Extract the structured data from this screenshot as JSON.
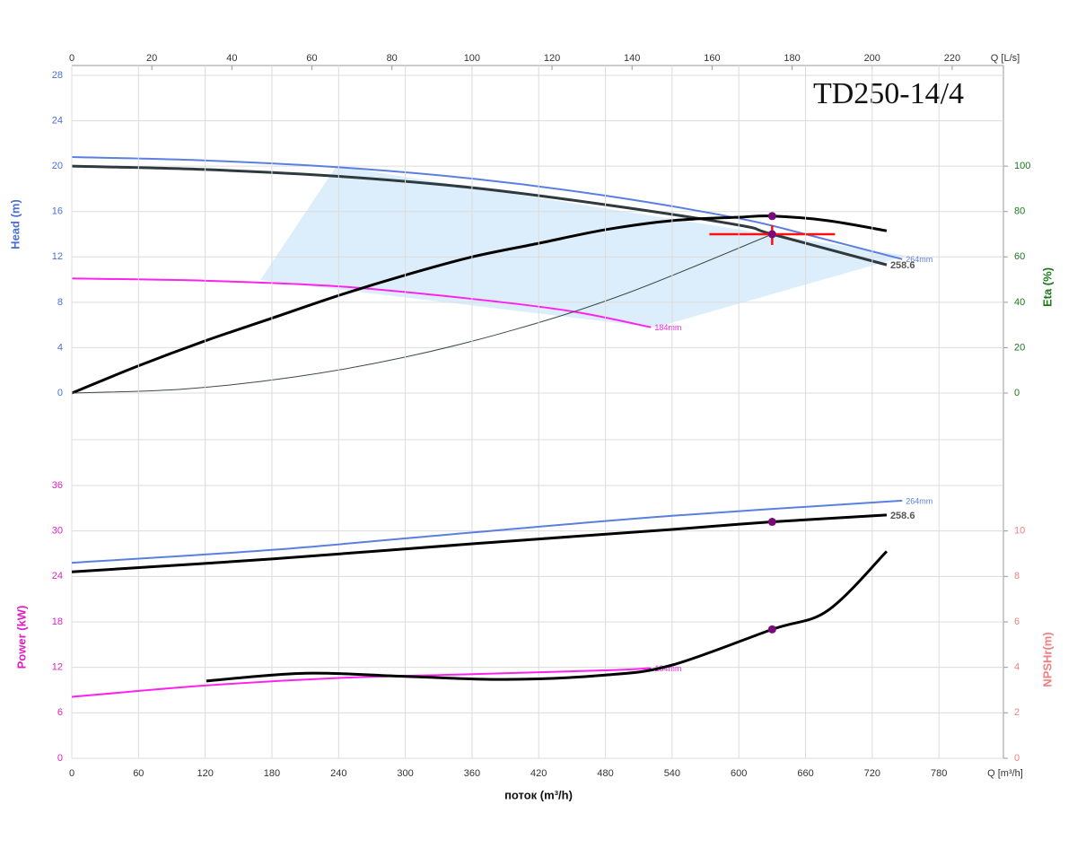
{
  "chart_data": [
    {
      "type": "line",
      "title": "TD250-14/4",
      "y_label": "Head (m)",
      "y2_label": "Eta (%)",
      "x2_label": "Q [L/s]",
      "xlim": [
        0,
        838
      ],
      "x2lim": [
        0,
        232.8
      ],
      "x2ticks": [
        0,
        20,
        40,
        60,
        80,
        100,
        120,
        140,
        160,
        180,
        200,
        220
      ],
      "ylim": [
        0,
        28
      ],
      "yticks": [
        0,
        4,
        8,
        12,
        16,
        20,
        24,
        28
      ],
      "y2lim": [
        0,
        140
      ],
      "y2ticks": [
        0,
        20,
        40,
        60,
        80,
        100
      ],
      "grid": true,
      "series": [
        {
          "name": "264mm",
          "color": "#5b7fe0",
          "x": [
            0,
            120,
            240,
            360,
            480,
            600,
            660,
            747
          ],
          "values": [
            20.8,
            20.5,
            19.9,
            18.9,
            17.4,
            15.4,
            14.0,
            11.8
          ]
        },
        {
          "name": "258.6",
          "color": "#2f3a3f",
          "x": [
            0,
            120,
            240,
            360,
            480,
            600,
            630,
            733
          ],
          "values": [
            20.0,
            19.7,
            19.1,
            18.1,
            16.6,
            14.8,
            14.0,
            11.3
          ]
        },
        {
          "name": "184mm",
          "color": "#ff22ee",
          "x": [
            0,
            120,
            240,
            360,
            450,
            521
          ],
          "values": [
            10.1,
            9.9,
            9.4,
            8.3,
            7.2,
            5.8
          ]
        },
        {
          "color": "#000000",
          "axis": "y2",
          "x": [
            0,
            60,
            120,
            180,
            240,
            300,
            360,
            420,
            480,
            540,
            600,
            630,
            680,
            733
          ],
          "values": [
            0,
            12,
            23,
            33,
            43,
            52,
            60,
            66,
            72,
            76,
            77.5,
            78,
            76,
            71.5
          ]
        },
        {
          "color": "#3a4a4a",
          "x": [
            0,
            100,
            200,
            300,
            400,
            500,
            630
          ],
          "values": [
            0,
            0.35,
            1.41,
            3.17,
            5.64,
            8.82,
            14.0
          ]
        }
      ],
      "markers": [
        {
          "x": 630,
          "y": 14.0
        },
        {
          "x": 630,
          "y": 78,
          "axis": "y2"
        }
      ],
      "operating_point": {
        "x": 630,
        "y": 14.0
      }
    },
    {
      "type": "line",
      "x_label": "поток (m³/h)",
      "x_unit_label": "Q [m³/h]",
      "y_label": "Power (kW)",
      "y2_label": "NPSHr(m)",
      "xlim": [
        0,
        838
      ],
      "xticks": [
        0,
        60,
        120,
        180,
        240,
        300,
        360,
        420,
        480,
        540,
        600,
        660,
        720,
        780
      ],
      "ylim": [
        0,
        36
      ],
      "yticks": [
        0,
        6,
        12,
        18,
        24,
        30,
        36
      ],
      "y2lim": [
        0,
        12
      ],
      "y2ticks": [
        0,
        2,
        4,
        6,
        8,
        10
      ],
      "grid": true,
      "series": [
        {
          "name": "264mm",
          "color": "#5b7fe0",
          "x": [
            0,
            180,
            360,
            540,
            747
          ],
          "values": [
            25.8,
            27.5,
            29.8,
            32.0,
            34.0
          ]
        },
        {
          "name": "258.6",
          "color": "#000000",
          "x": [
            0,
            180,
            360,
            540,
            630,
            733
          ],
          "values": [
            24.6,
            26.3,
            28.3,
            30.2,
            31.2,
            32.1
          ]
        },
        {
          "name": "184mm",
          "color": "#ff22ee",
          "x": [
            0,
            120,
            240,
            360,
            480,
            521
          ],
          "values": [
            8.1,
            9.6,
            10.6,
            11.1,
            11.6,
            11.9
          ]
        },
        {
          "color": "#000000",
          "axis": "y2",
          "x": [
            121,
            210,
            300,
            390,
            480,
            540,
            630,
            680,
            733
          ],
          "values": [
            3.4,
            3.74,
            3.6,
            3.47,
            3.66,
            4.1,
            5.67,
            6.5,
            9.1
          ]
        }
      ],
      "markers": [
        {
          "x": 630,
          "y": 31.2
        },
        {
          "x": 630,
          "y": 5.67,
          "axis": "y2"
        }
      ]
    }
  ]
}
